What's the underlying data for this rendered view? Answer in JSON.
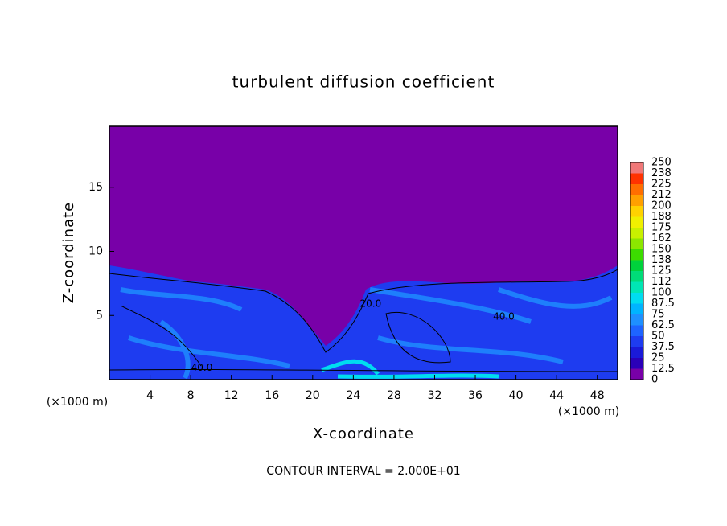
{
  "chart_data": {
    "type": "contour",
    "title": "turbulent diffusion coefficient",
    "x_label": "X-coordinate",
    "y_label": "Z-coordinate",
    "x_unit": "(×1000 m)",
    "y_unit": "(×1000 m)",
    "footnote": "CONTOUR INTERVAL = 2.000E+01",
    "xlim": [
      0,
      50
    ],
    "ylim": [
      0,
      19.75
    ],
    "xticks": [
      4,
      8,
      12,
      16,
      20,
      24,
      28,
      32,
      36,
      40,
      44,
      48
    ],
    "yticks": [
      5,
      10,
      15
    ],
    "contour_labels": [
      {
        "text": "40.0",
        "x": 9.1,
        "y": 0.9
      },
      {
        "text": "20.0",
        "x": 25.7,
        "y": 5.9
      },
      {
        "text": "40.0",
        "x": 38.8,
        "y": 4.9
      }
    ],
    "colorbar": {
      "levels": [
        0,
        12.5,
        25,
        37.5,
        50,
        62.5,
        75,
        87.5,
        100,
        112,
        125,
        138,
        150,
        162,
        175,
        188,
        200,
        212,
        225,
        238,
        250
      ],
      "colors": [
        "#7800a8",
        "#2a00b8",
        "#1a1ad8",
        "#1e3cf0",
        "#1e64ff",
        "#1e90ff",
        "#00b4ff",
        "#00dcf0",
        "#00e6b4",
        "#00dc78",
        "#00d23c",
        "#3cdc00",
        "#8ce600",
        "#c8f000",
        "#f0f000",
        "#ffd200",
        "#ffa000",
        "#ff6e00",
        "#ff3200",
        "#f07878"
      ]
    }
  }
}
